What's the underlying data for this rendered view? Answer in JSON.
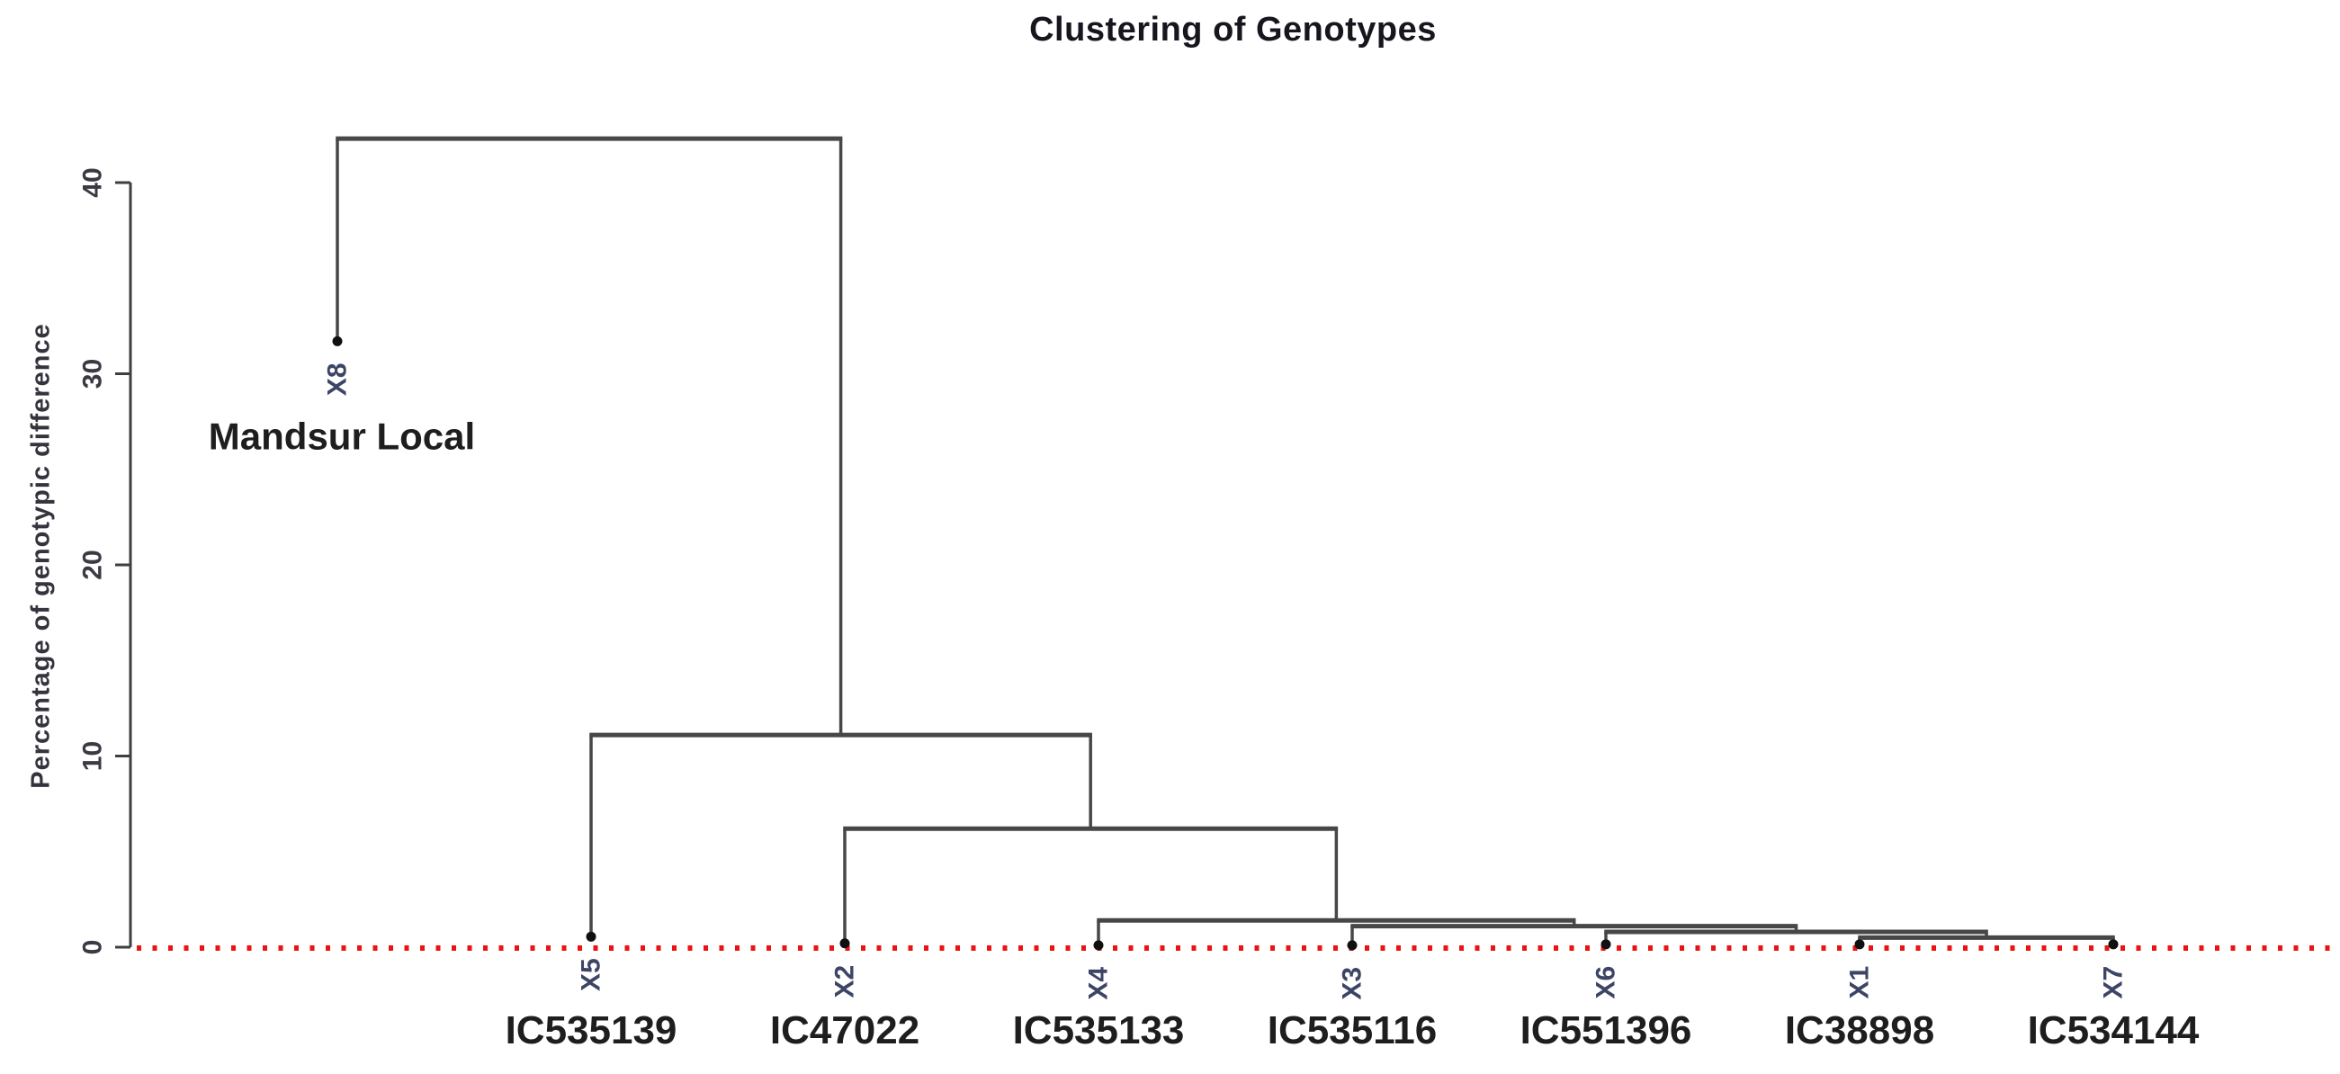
{
  "chart_data": {
    "type": "dendrogram",
    "title": "Clustering of Genotypes",
    "ylabel": "Percentage of genotypic difference",
    "yticks": [
      0,
      10,
      20,
      30,
      40
    ],
    "ylim": [
      0,
      44
    ],
    "legend": "none",
    "grid": false,
    "cutoff_line": {
      "value": 0,
      "color": "#ee1111",
      "style": "dotted"
    },
    "leaves": [
      {
        "id": "X8",
        "genotype": "Mandsur Local",
        "marker_height": 31.7,
        "genotype_label_placement": "near-marker"
      },
      {
        "id": "X5",
        "genotype": "IC535139",
        "marker_height": 0.55,
        "genotype_label_placement": "bottom"
      },
      {
        "id": "X2",
        "genotype": "IC47022",
        "marker_height": 0.2,
        "genotype_label_placement": "bottom"
      },
      {
        "id": "X4",
        "genotype": "IC535133",
        "marker_height": 0.1,
        "genotype_label_placement": "bottom"
      },
      {
        "id": "X3",
        "genotype": "IC535116",
        "marker_height": 0.1,
        "genotype_label_placement": "bottom"
      },
      {
        "id": "X6",
        "genotype": "IC551396",
        "marker_height": 0.15,
        "genotype_label_placement": "bottom"
      },
      {
        "id": "X1",
        "genotype": "IC38898",
        "marker_height": 0.15,
        "genotype_label_placement": "bottom"
      },
      {
        "id": "X7",
        "genotype": "IC534144",
        "marker_height": 0.15,
        "genotype_label_placement": "bottom"
      }
    ],
    "merges": [
      {
        "id": "M1",
        "left": "X1",
        "right": "X7",
        "height": 0.5
      },
      {
        "id": "M2",
        "left": "X6",
        "right": "M1",
        "height": 0.8
      },
      {
        "id": "M3",
        "left": "X3",
        "right": "M2",
        "height": 1.1
      },
      {
        "id": "M4",
        "left": "X4",
        "right": "M3",
        "height": 1.4
      },
      {
        "id": "M5",
        "left": "X2",
        "right": "M4",
        "height": 6.2
      },
      {
        "id": "M6",
        "left": "X5",
        "right": "M5",
        "height": 11.1
      },
      {
        "id": "M7",
        "left": "X8",
        "right": "M6",
        "height": 42.3
      }
    ],
    "colors": {
      "link": "#474747",
      "marker": "#101010",
      "cutoff": "#ee1111",
      "axis": "#3f3f3f",
      "tick_label": "#3a3a45",
      "leaf_label": "#3d4566",
      "genotype_label": "#1e1e1e",
      "title": "#16161e"
    }
  }
}
